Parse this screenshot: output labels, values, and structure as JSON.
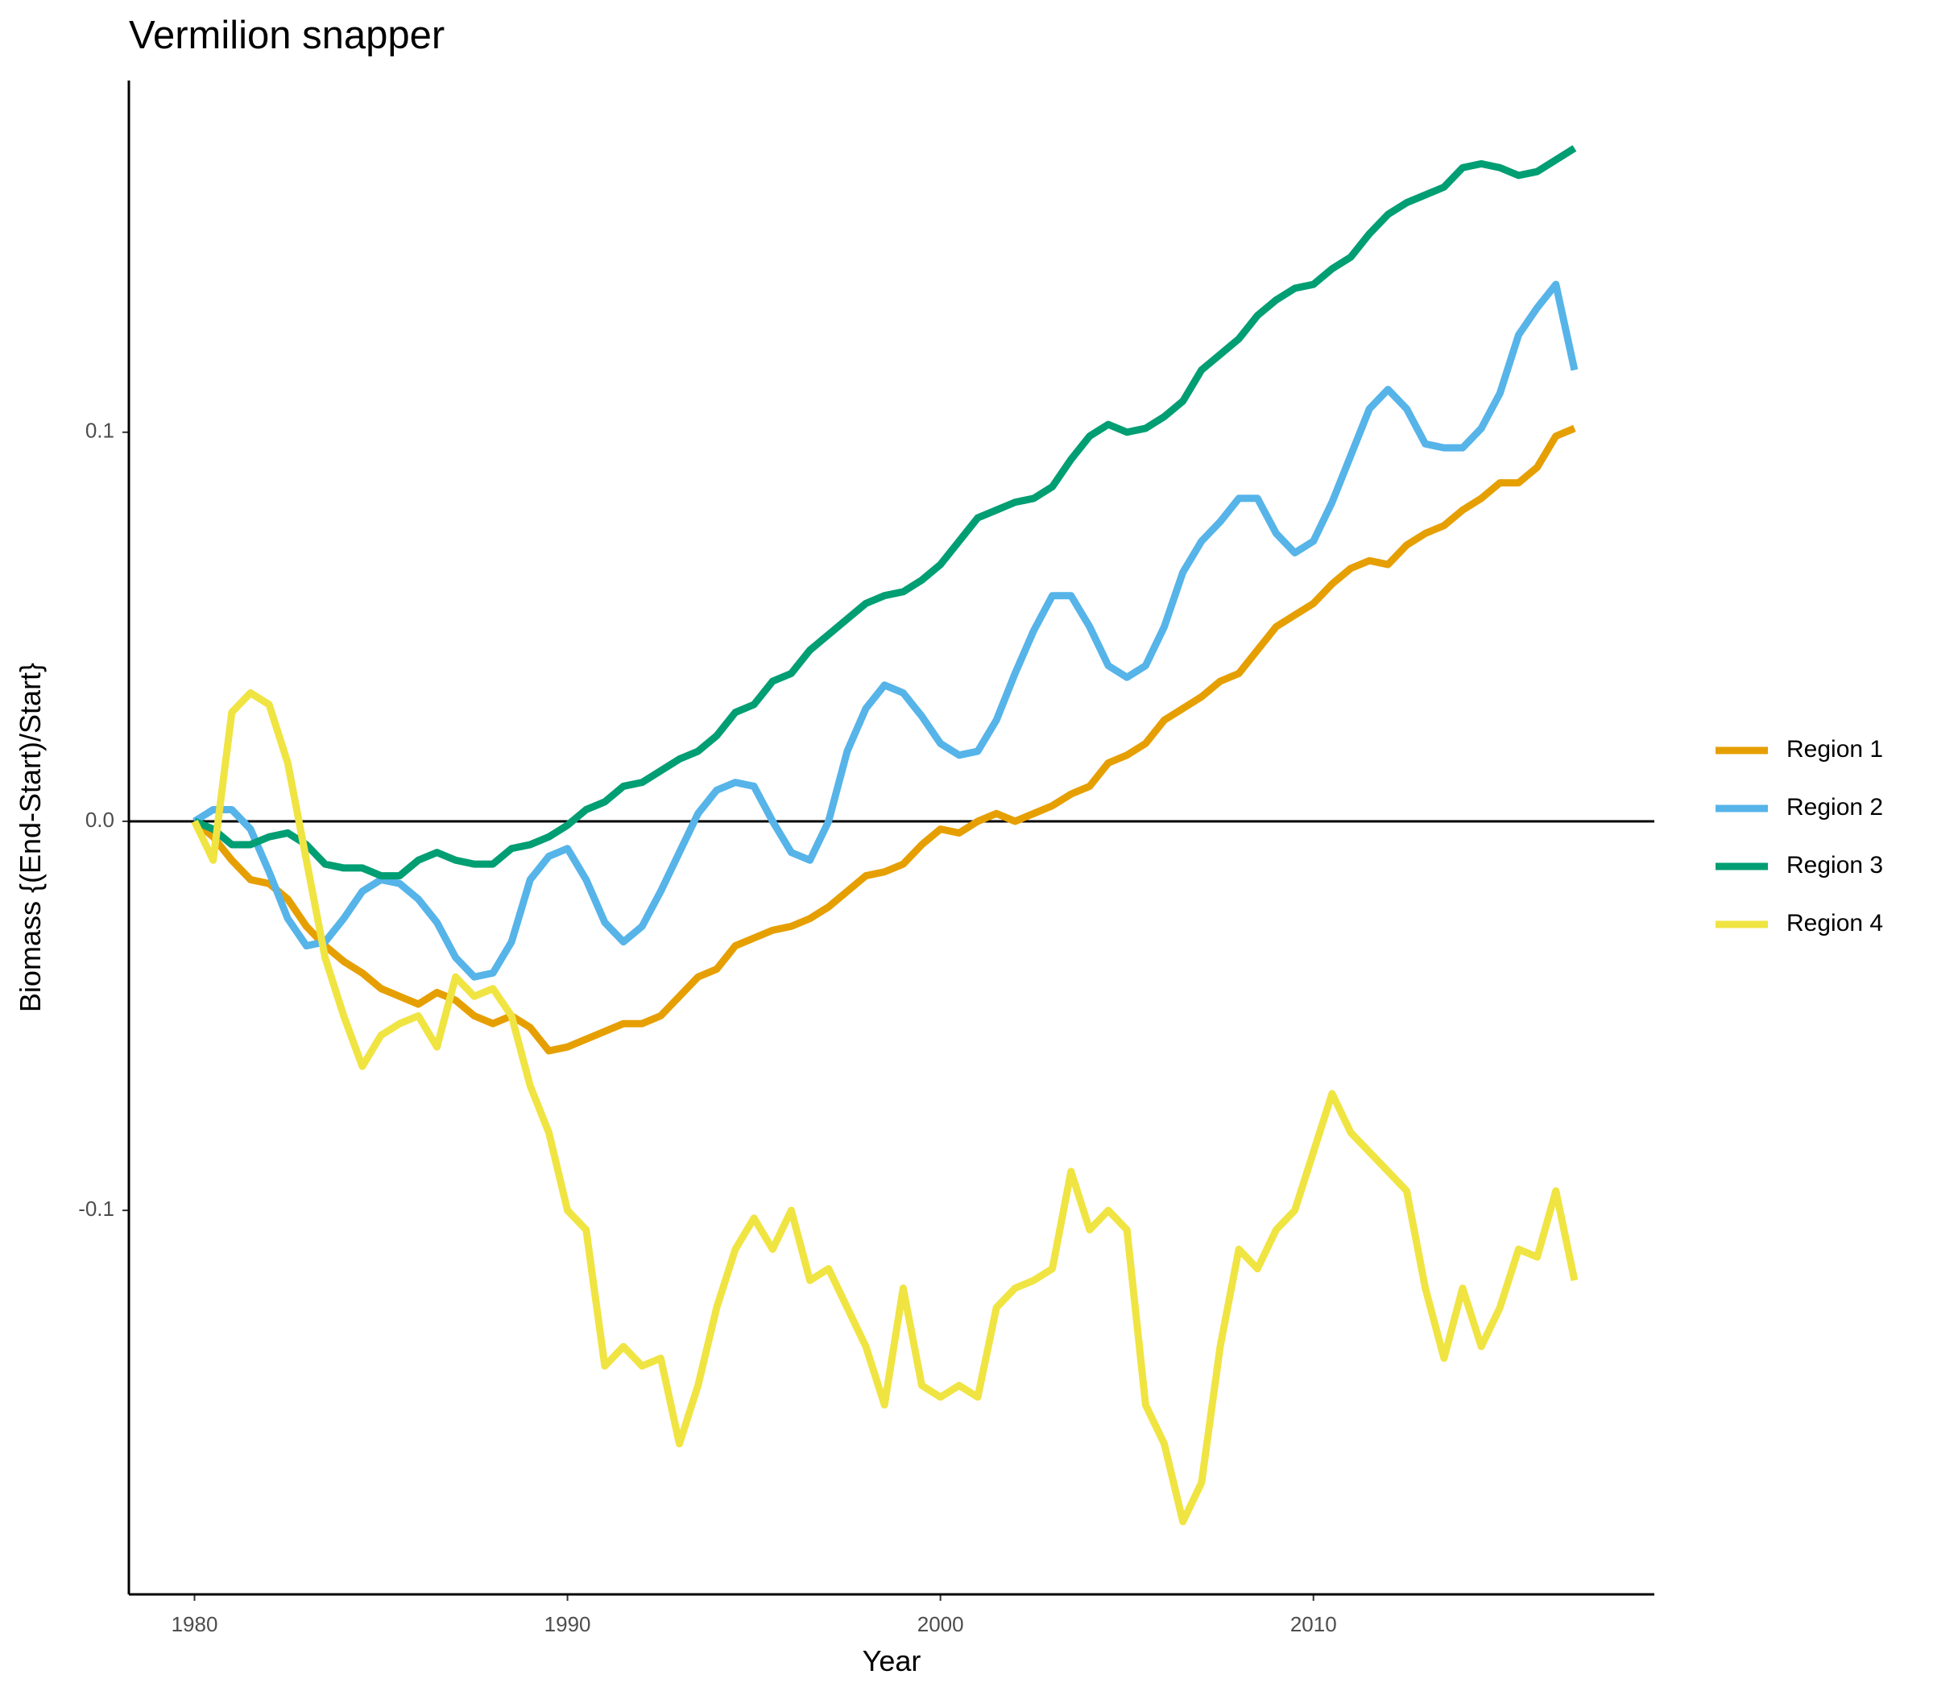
{
  "chart_data": {
    "type": "line",
    "title": "Vermilion snapper",
    "x_label": "Year",
    "y_label": "Biomass {(End-Start)/Start}",
    "x": [
      1980,
      1980.5,
      1981,
      1981.5,
      1982,
      1982.5,
      1983,
      1983.5,
      1984,
      1984.5,
      1985,
      1985.5,
      1986,
      1986.5,
      1987,
      1987.5,
      1988,
      1988.5,
      1989,
      1989.5,
      1990,
      1990.5,
      1991,
      1991.5,
      1992,
      1992.5,
      1993,
      1993.5,
      1994,
      1994.5,
      1995,
      1995.5,
      1996,
      1996.5,
      1997,
      1997.5,
      1998,
      1998.5,
      1999,
      1999.5,
      2000,
      2000.5,
      2001,
      2001.5,
      2002,
      2002.5,
      2003,
      2003.5,
      2004,
      2004.5,
      2005,
      2005.5,
      2006,
      2006.5,
      2007,
      2007.5,
      2008,
      2008.5,
      2009,
      2009.5,
      2010,
      2010.5,
      2011,
      2011.5,
      2012,
      2012.5,
      2013,
      2013.5,
      2014,
      2014.5,
      2015,
      2015.5,
      2016,
      2016.5,
      2017
    ],
    "series": [
      {
        "name": "Region 1",
        "color": "#E69F00",
        "values": [
          0,
          -0.004,
          -0.01,
          -0.015,
          -0.016,
          -0.02,
          -0.027,
          -0.032,
          -0.036,
          -0.039,
          -0.043,
          -0.045,
          -0.047,
          -0.044,
          -0.046,
          -0.05,
          -0.052,
          -0.05,
          -0.053,
          -0.059,
          -0.058,
          -0.056,
          -0.054,
          -0.052,
          -0.052,
          -0.05,
          -0.045,
          -0.04,
          -0.038,
          -0.032,
          -0.03,
          -0.028,
          -0.027,
          -0.025,
          -0.022,
          -0.018,
          -0.014,
          -0.013,
          -0.011,
          -0.006,
          -0.002,
          -0.003,
          0,
          0.002,
          0,
          0.002,
          0.004,
          0.007,
          0.009,
          0.015,
          0.017,
          0.02,
          0.026,
          0.029,
          0.032,
          0.036,
          0.038,
          0.044,
          0.05,
          0.053,
          0.056,
          0.061,
          0.065,
          0.067,
          0.066,
          0.071,
          0.074,
          0.076,
          0.08,
          0.083,
          0.087,
          0.087,
          0.091,
          0.099,
          0.101
        ]
      },
      {
        "name": "Region 2",
        "color": "#56B4E9",
        "values": [
          0,
          0.003,
          0.003,
          -0.002,
          -0.013,
          -0.025,
          -0.032,
          -0.031,
          -0.025,
          -0.018,
          -0.015,
          -0.016,
          -0.02,
          -0.026,
          -0.035,
          -0.04,
          -0.039,
          -0.031,
          -0.015,
          -0.009,
          -0.007,
          -0.015,
          -0.026,
          -0.031,
          -0.027,
          -0.018,
          -0.008,
          0.002,
          0.008,
          0.01,
          0.009,
          0,
          -0.008,
          -0.01,
          0,
          0.018,
          0.029,
          0.035,
          0.033,
          0.027,
          0.02,
          0.017,
          0.018,
          0.026,
          0.038,
          0.049,
          0.058,
          0.058,
          0.05,
          0.04,
          0.037,
          0.04,
          0.05,
          0.064,
          0.072,
          0.077,
          0.083,
          0.083,
          0.074,
          0.069,
          0.072,
          0.082,
          0.094,
          0.106,
          0.111,
          0.106,
          0.097,
          0.096,
          0.096,
          0.101,
          0.11,
          0.125,
          0.132,
          0.138,
          0.116
        ]
      },
      {
        "name": "Region 3",
        "color": "#009E73",
        "values": [
          0,
          -0.002,
          -0.006,
          -0.006,
          -0.004,
          -0.003,
          -0.006,
          -0.011,
          -0.012,
          -0.012,
          -0.014,
          -0.014,
          -0.01,
          -0.008,
          -0.01,
          -0.011,
          -0.011,
          -0.007,
          -0.006,
          -0.004,
          -0.001,
          0.003,
          0.005,
          0.009,
          0.01,
          0.013,
          0.016,
          0.018,
          0.022,
          0.028,
          0.03,
          0.036,
          0.038,
          0.044,
          0.048,
          0.052,
          0.056,
          0.058,
          0.059,
          0.062,
          0.066,
          0.072,
          0.078,
          0.08,
          0.082,
          0.083,
          0.086,
          0.093,
          0.099,
          0.102,
          0.1,
          0.101,
          0.104,
          0.108,
          0.116,
          0.12,
          0.124,
          0.13,
          0.134,
          0.137,
          0.138,
          0.142,
          0.145,
          0.151,
          0.156,
          0.159,
          0.161,
          0.163,
          0.168,
          0.169,
          0.168,
          0.166,
          0.167,
          0.17,
          0.173
        ]
      },
      {
        "name": "Region 4",
        "color": "#F0E442",
        "values": [
          0,
          -0.01,
          0.028,
          0.033,
          0.03,
          0.015,
          -0.01,
          -0.035,
          -0.05,
          -0.063,
          -0.055,
          -0.052,
          -0.05,
          -0.058,
          -0.04,
          -0.045,
          -0.043,
          -0.05,
          -0.068,
          -0.08,
          -0.1,
          -0.105,
          -0.14,
          -0.135,
          -0.14,
          -0.138,
          -0.16,
          -0.145,
          -0.125,
          -0.11,
          -0.102,
          -0.11,
          -0.1,
          -0.118,
          -0.115,
          -0.125,
          -0.135,
          -0.15,
          -0.12,
          -0.145,
          -0.148,
          -0.145,
          -0.148,
          -0.125,
          -0.12,
          -0.118,
          -0.115,
          -0.09,
          -0.105,
          -0.1,
          -0.105,
          -0.15,
          -0.16,
          -0.18,
          -0.17,
          -0.135,
          -0.11,
          -0.115,
          -0.105,
          -0.1,
          -0.085,
          -0.07,
          -0.08,
          -0.085,
          -0.09,
          -0.095,
          -0.12,
          -0.138,
          -0.12,
          -0.135,
          -0.125,
          -0.11,
          -0.112,
          -0.095,
          -0.118
        ]
      }
    ],
    "xlim": [
      1978.24,
      2019.14
    ],
    "ylim": [
      -0.1987,
      0.1904
    ],
    "xticks": [
      1980,
      1990,
      2000,
      2010
    ],
    "yticks": [
      -0.1,
      {
        "value": 0,
        "label": "0.0"
      },
      0.1
    ],
    "hline": 0,
    "grid": false,
    "legend": "right"
  }
}
